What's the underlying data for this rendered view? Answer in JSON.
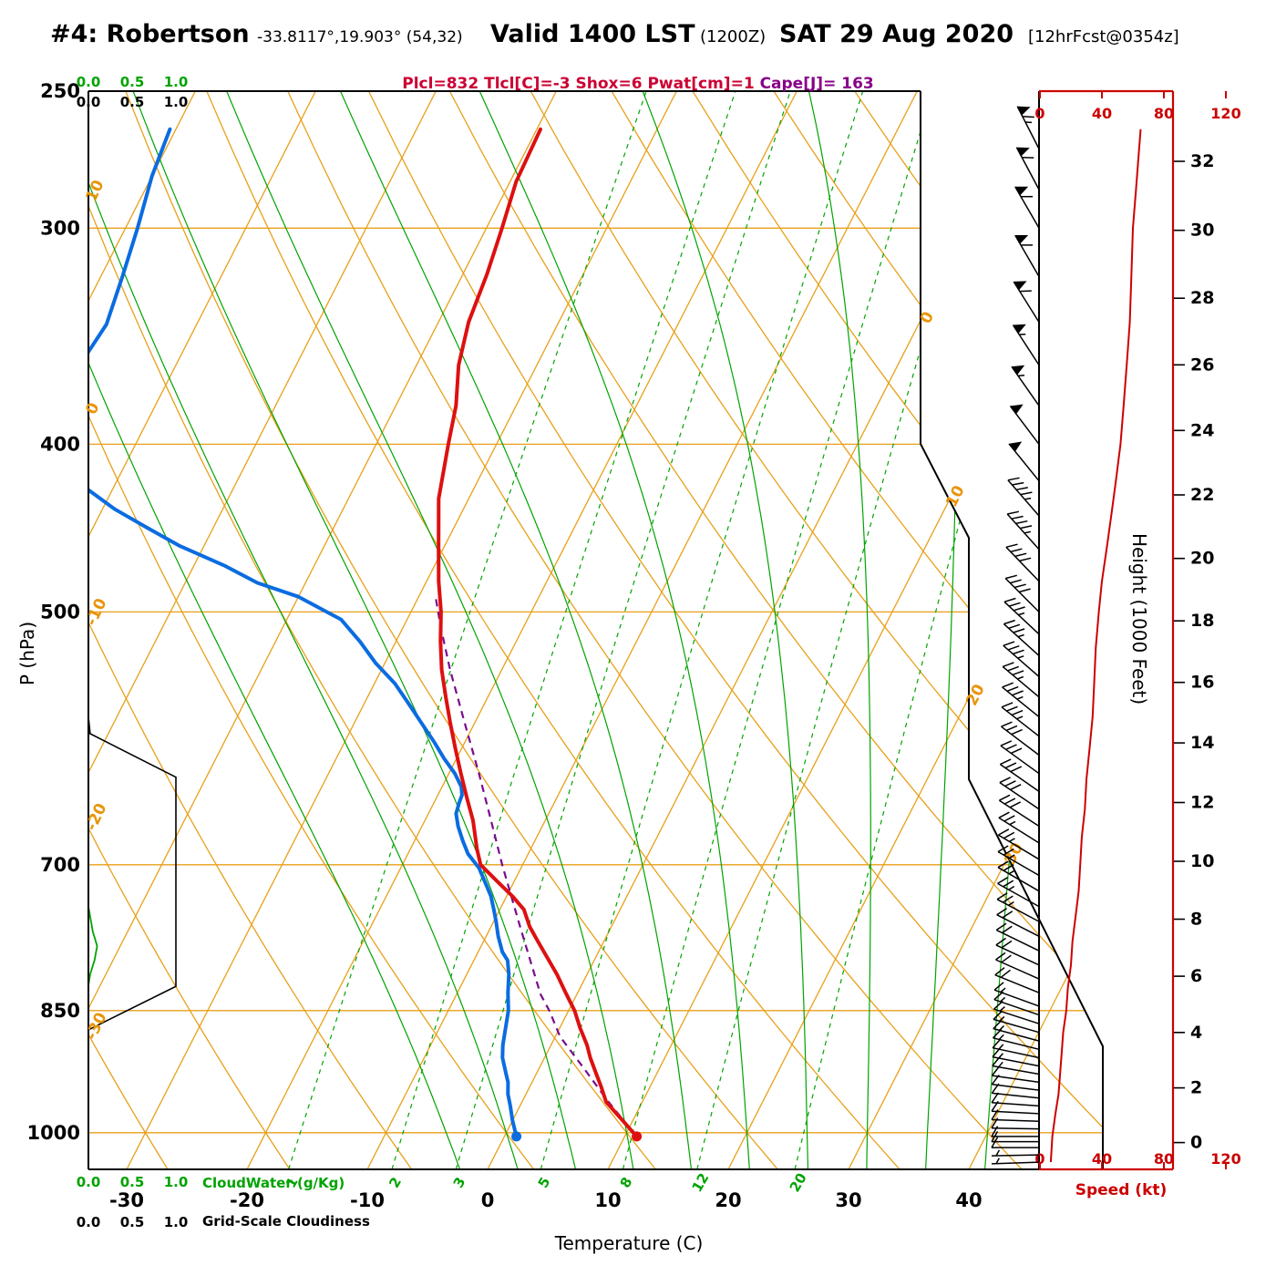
{
  "header": {
    "station": "#4: Robertson",
    "coords": "-33.8117°,19.903° (54,32)",
    "valid_bold": "Valid 1400 LST",
    "valid_z": "(1200Z)",
    "valid_date": "SAT 29 Aug 2020",
    "fcst": "[12hrFcst@0354z]",
    "stats_red": "Plcl=832 Tlcl[C]=-3 Shox=6 Pwat[cm]=1 ",
    "stats_purple": "Cape[J]= 163"
  },
  "axes": {
    "pressure_label": "P (hPa)",
    "pressure_ticks": [
      250,
      300,
      400,
      500,
      700,
      850,
      1000
    ],
    "temp_label": "Temperature (C)",
    "temp_ticks": [
      -30,
      -20,
      -10,
      0,
      10,
      20,
      30,
      40
    ],
    "height_label": "Height (1000 Feet)",
    "height_ticks": [
      0,
      2,
      4,
      6,
      8,
      10,
      12,
      14,
      16,
      18,
      20,
      22,
      24,
      26,
      28,
      30,
      32
    ],
    "speed_label": "Speed (kt)",
    "speed_ticks": [
      0,
      40,
      80,
      120
    ],
    "scale_ticks": [
      "0.0",
      "0.5",
      "1.0"
    ],
    "cloudwater_label": "CloudWater (g/Kg)",
    "cloudiness_label": "Grid-Scale Cloudiness"
  },
  "colors": {
    "grid_orange": "#E8A01A",
    "green": "#00A300",
    "temperature": "#DD1010",
    "dewpoint": "#0B6CE0",
    "parcel": "#7A0B8E",
    "speed": "#CC0000",
    "stats_red": "#CC0033",
    "stats_purple": "#880088"
  },
  "chart_data": {
    "type": "skewt",
    "pressure_lines": [
      300,
      400,
      500,
      700,
      850,
      1000
    ],
    "isotherms": {
      "min": -100,
      "max": 40,
      "step": 10,
      "labeled": [
        0,
        10,
        20,
        30
      ]
    },
    "dry_adiabats": {
      "min": -30,
      "max": 110,
      "step": 10,
      "labeled": [
        10,
        0,
        -10,
        -20,
        -30
      ]
    },
    "moist_adiabats": [
      -5,
      0,
      5,
      10,
      15,
      20,
      25,
      30,
      35,
      40
    ],
    "mixing_ratio_lines": [
      1,
      2,
      3,
      5,
      8,
      12,
      20
    ],
    "temperature_c": [
      [
        1005,
        11
      ],
      [
        980,
        8.8
      ],
      [
        960,
        7
      ],
      [
        940,
        5.9
      ],
      [
        925,
        5
      ],
      [
        905,
        3.8
      ],
      [
        890,
        3
      ],
      [
        870,
        1.7
      ],
      [
        850,
        0.5
      ],
      [
        830,
        -1
      ],
      [
        810,
        -2.5
      ],
      [
        790,
        -4.2
      ],
      [
        775,
        -5.5
      ],
      [
        760,
        -6.8
      ],
      [
        743,
        -8
      ],
      [
        730,
        -9.5
      ],
      [
        715,
        -11.5
      ],
      [
        700,
        -13.5
      ],
      [
        685,
        -14.5
      ],
      [
        660,
        -16
      ],
      [
        640,
        -17.5
      ],
      [
        620,
        -19
      ],
      [
        600,
        -20.5
      ],
      [
        580,
        -22
      ],
      [
        560,
        -23.5
      ],
      [
        540,
        -25
      ],
      [
        520,
        -26.3
      ],
      [
        500,
        -27.5
      ],
      [
        480,
        -29
      ],
      [
        458,
        -30.5
      ],
      [
        430,
        -32.5
      ],
      [
        400,
        -34
      ],
      [
        380,
        -35
      ],
      [
        360,
        -36.5
      ],
      [
        340,
        -37.5
      ],
      [
        319,
        -38
      ],
      [
        300,
        -38.7
      ],
      [
        282,
        -39.5
      ],
      [
        263,
        -39.7
      ]
    ],
    "dewpoint_c": [
      [
        1005,
        1
      ],
      [
        984,
        0
      ],
      [
        965,
        -0.8
      ],
      [
        950,
        -1.5
      ],
      [
        935,
        -2
      ],
      [
        925,
        -2.5
      ],
      [
        905,
        -3.5
      ],
      [
        890,
        -4
      ],
      [
        870,
        -4.5
      ],
      [
        850,
        -5
      ],
      [
        830,
        -5.8
      ],
      [
        810,
        -6.5
      ],
      [
        795,
        -7.2
      ],
      [
        786,
        -8
      ],
      [
        770,
        -9
      ],
      [
        755,
        -9.8
      ],
      [
        743,
        -10.5
      ],
      [
        730,
        -11.3
      ],
      [
        715,
        -12.5
      ],
      [
        703,
        -13.5
      ],
      [
        690,
        -15
      ],
      [
        678,
        -16
      ],
      [
        665,
        -17
      ],
      [
        654,
        -17.7
      ],
      [
        645,
        -17.9
      ],
      [
        638,
        -18
      ],
      [
        631,
        -18.4
      ],
      [
        620,
        -19.5
      ],
      [
        608,
        -21
      ],
      [
        595,
        -22.5
      ],
      [
        579,
        -24.5
      ],
      [
        565,
        -26.3
      ],
      [
        550,
        -28.3
      ],
      [
        535,
        -30.8
      ],
      [
        520,
        -33
      ],
      [
        505,
        -35.5
      ],
      [
        500,
        -37
      ],
      [
        490,
        -40
      ],
      [
        481,
        -44
      ],
      [
        470,
        -47.5
      ],
      [
        458,
        -52
      ],
      [
        447,
        -55.5
      ],
      [
        436,
        -59
      ],
      [
        425,
        -62
      ],
      [
        410,
        -64.5
      ],
      [
        395,
        -66
      ],
      [
        380,
        -67
      ],
      [
        360,
        -68
      ],
      [
        341,
        -67.5
      ],
      [
        320,
        -68.2
      ],
      [
        300,
        -69
      ],
      [
        280,
        -70
      ],
      [
        263,
        -70.5
      ]
    ],
    "parcel_c": [
      [
        1005,
        11
      ],
      [
        960,
        7.2
      ],
      [
        920,
        3.9
      ],
      [
        880,
        0.4
      ],
      [
        850,
        -1.6
      ],
      [
        832,
        -3
      ],
      [
        800,
        -5
      ],
      [
        760,
        -7.6
      ],
      [
        720,
        -10.3
      ],
      [
        700,
        -11.7
      ],
      [
        660,
        -14.5
      ],
      [
        620,
        -17.5
      ],
      [
        580,
        -20.8
      ],
      [
        540,
        -24.3
      ],
      [
        510,
        -26.9
      ],
      [
        490,
        -28.6
      ]
    ],
    "surface_temp_point": [
      1005,
      11
    ],
    "surface_dew_point": [
      1005,
      1
    ],
    "wind_barbs": [
      [
        1040,
        268,
        7
      ],
      [
        1030,
        269,
        7
      ],
      [
        1020,
        270,
        8
      ],
      [
        1012,
        270,
        8
      ],
      [
        1005,
        270,
        8
      ],
      [
        995,
        271,
        9
      ],
      [
        985,
        272,
        9
      ],
      [
        975,
        273,
        10
      ],
      [
        965,
        274,
        10
      ],
      [
        955,
        276,
        11
      ],
      [
        945,
        277,
        12
      ],
      [
        935,
        278,
        12
      ],
      [
        925,
        280,
        13
      ],
      [
        915,
        281,
        13
      ],
      [
        905,
        282,
        14
      ],
      [
        895,
        284,
        14
      ],
      [
        885,
        285,
        15
      ],
      [
        875,
        286,
        15
      ],
      [
        865,
        288,
        16
      ],
      [
        855,
        289,
        16
      ],
      [
        845,
        290,
        17
      ],
      [
        830,
        292,
        18
      ],
      [
        815,
        294,
        19
      ],
      [
        800,
        295,
        20
      ],
      [
        785,
        296,
        21
      ],
      [
        770,
        297,
        22
      ],
      [
        755,
        298,
        23
      ],
      [
        740,
        299,
        24
      ],
      [
        725,
        300,
        25
      ],
      [
        710,
        300,
        26
      ],
      [
        695,
        301,
        27
      ],
      [
        680,
        302,
        27
      ],
      [
        665,
        303,
        28
      ],
      [
        650,
        304,
        29
      ],
      [
        635,
        305,
        30
      ],
      [
        620,
        306,
        31
      ],
      [
        605,
        307,
        32
      ],
      [
        590,
        308,
        33
      ],
      [
        575,
        309,
        34
      ],
      [
        560,
        310,
        34
      ],
      [
        545,
        311,
        35
      ],
      [
        530,
        312,
        36
      ],
      [
        515,
        313,
        37
      ],
      [
        500,
        315,
        38
      ],
      [
        480,
        316,
        40
      ],
      [
        460,
        318,
        43
      ],
      [
        440,
        319,
        46
      ],
      [
        420,
        321,
        49
      ],
      [
        400,
        323,
        52
      ],
      [
        380,
        325,
        54
      ],
      [
        360,
        327,
        56
      ],
      [
        340,
        328,
        58
      ],
      [
        320,
        330,
        59
      ],
      [
        300,
        330,
        60
      ],
      [
        285,
        332,
        62
      ],
      [
        270,
        333,
        64
      ]
    ],
    "speed_profile": [
      [
        1040,
        7
      ],
      [
        1005,
        8
      ],
      [
        975,
        10
      ],
      [
        950,
        12
      ],
      [
        925,
        13
      ],
      [
        900,
        14
      ],
      [
        875,
        15
      ],
      [
        850,
        17
      ],
      [
        825,
        18
      ],
      [
        800,
        20
      ],
      [
        775,
        21
      ],
      [
        750,
        23
      ],
      [
        725,
        25
      ],
      [
        700,
        26
      ],
      [
        675,
        27
      ],
      [
        650,
        29
      ],
      [
        625,
        30
      ],
      [
        600,
        32
      ],
      [
        575,
        34
      ],
      [
        550,
        35
      ],
      [
        525,
        36
      ],
      [
        500,
        38
      ],
      [
        480,
        40
      ],
      [
        460,
        43
      ],
      [
        440,
        46
      ],
      [
        420,
        49
      ],
      [
        400,
        52
      ],
      [
        380,
        54
      ],
      [
        360,
        56
      ],
      [
        340,
        58
      ],
      [
        320,
        59
      ],
      [
        300,
        60
      ],
      [
        285,
        62
      ],
      [
        270,
        64
      ],
      [
        263,
        65
      ]
    ],
    "cloud_water_gkg": [
      [
        250,
        0
      ],
      [
        700,
        0
      ],
      [
        740,
        0
      ],
      [
        765,
        0.05
      ],
      [
        780,
        0.1
      ],
      [
        795,
        0.07
      ],
      [
        810,
        0.02
      ],
      [
        822,
        0
      ],
      [
        1050,
        0
      ]
    ],
    "grid_scale_cloudiness": [
      [
        250,
        0
      ],
      [
        575,
        0
      ],
      [
        588,
        0.02
      ],
      [
        623,
        1
      ],
      [
        823,
        1
      ],
      [
        872,
        0
      ],
      [
        1050,
        0
      ]
    ]
  }
}
